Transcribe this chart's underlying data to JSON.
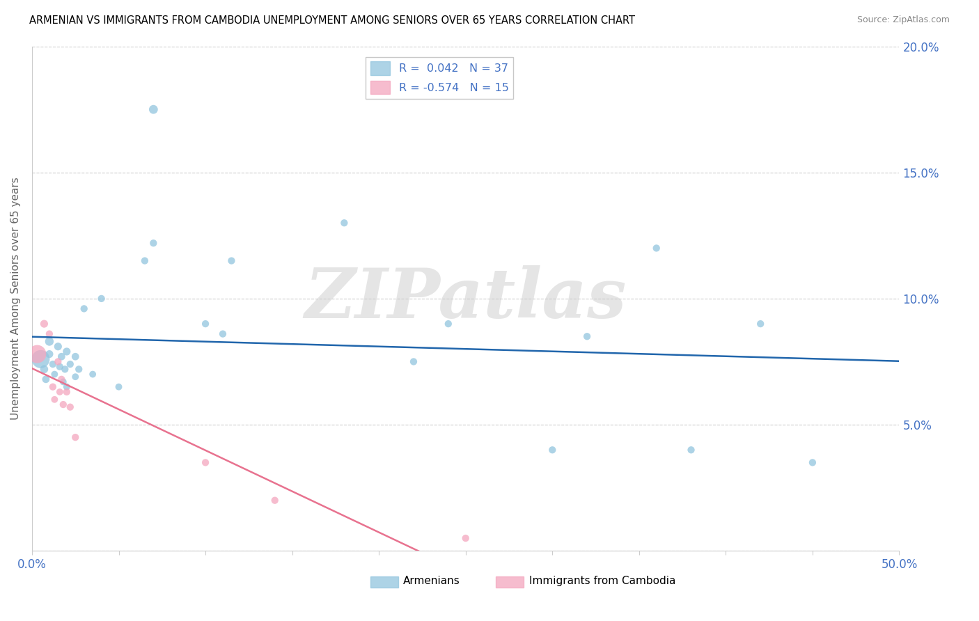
{
  "title": "ARMENIAN VS IMMIGRANTS FROM CAMBODIA UNEMPLOYMENT AMONG SENIORS OVER 65 YEARS CORRELATION CHART",
  "source": "Source: ZipAtlas.com",
  "ylabel": "Unemployment Among Seniors over 65 years",
  "xlim": [
    0,
    0.5
  ],
  "ylim": [
    0,
    0.2
  ],
  "armenians_r": 0.042,
  "armenians_n": 37,
  "cambodia_r": -0.574,
  "cambodia_n": 15,
  "legend_label_armenians": "Armenians",
  "legend_label_cambodia": "Immigrants from Cambodia",
  "color_armenians": "#92c5de",
  "color_cambodia": "#f4a6be",
  "line_color_armenians": "#2166ac",
  "line_color_cambodia": "#e8728f",
  "watermark_text": "ZIPatlas",
  "armenians_x": [
    0.005,
    0.007,
    0.008,
    0.01,
    0.01,
    0.012,
    0.013,
    0.015,
    0.016,
    0.017,
    0.018,
    0.019,
    0.02,
    0.02,
    0.022,
    0.025,
    0.025,
    0.027,
    0.03,
    0.035,
    0.04,
    0.05,
    0.065,
    0.07,
    0.1,
    0.11,
    0.115,
    0.18,
    0.22,
    0.24,
    0.3,
    0.32,
    0.36,
    0.38,
    0.42,
    0.45,
    0.07
  ],
  "armenians_y": [
    0.076,
    0.072,
    0.068,
    0.083,
    0.078,
    0.074,
    0.07,
    0.081,
    0.073,
    0.077,
    0.067,
    0.072,
    0.079,
    0.065,
    0.074,
    0.077,
    0.069,
    0.072,
    0.096,
    0.07,
    0.1,
    0.065,
    0.115,
    0.122,
    0.09,
    0.086,
    0.115,
    0.13,
    0.075,
    0.09,
    0.04,
    0.085,
    0.12,
    0.04,
    0.09,
    0.035,
    0.175
  ],
  "armenians_size": [
    350,
    70,
    60,
    80,
    65,
    55,
    50,
    65,
    55,
    60,
    50,
    55,
    65,
    50,
    55,
    60,
    50,
    55,
    55,
    50,
    55,
    50,
    55,
    55,
    55,
    55,
    55,
    55,
    55,
    55,
    55,
    55,
    55,
    55,
    55,
    55,
    85
  ],
  "cambodia_x": [
    0.003,
    0.007,
    0.01,
    0.012,
    0.013,
    0.015,
    0.016,
    0.017,
    0.018,
    0.02,
    0.022,
    0.025,
    0.1,
    0.14,
    0.25
  ],
  "cambodia_y": [
    0.078,
    0.09,
    0.086,
    0.065,
    0.06,
    0.075,
    0.063,
    0.068,
    0.058,
    0.063,
    0.057,
    0.045,
    0.035,
    0.02,
    0.005
  ],
  "cambodia_size": [
    350,
    65,
    55,
    55,
    50,
    55,
    50,
    55,
    55,
    55,
    55,
    55,
    55,
    55,
    55
  ]
}
